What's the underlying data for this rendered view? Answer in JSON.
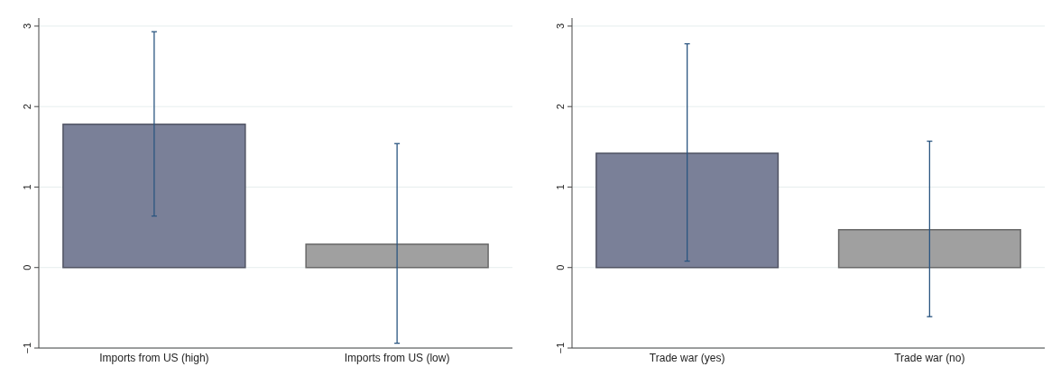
{
  "chart_data": [
    {
      "type": "bar",
      "categories": [
        "Imports from US (high)",
        "Imports from US (low)"
      ],
      "values": [
        1.78,
        0.29
      ],
      "colors": [
        "#7a8098",
        "#a0a0a0"
      ],
      "errors": [
        [
          0.64,
          2.93
        ],
        [
          -0.94,
          1.54
        ]
      ],
      "ylim": [
        -1,
        3.1
      ],
      "yticks": [
        {
          "value": -1,
          "label": "−1"
        },
        0,
        1,
        2,
        3
      ],
      "grid": "y"
    },
    {
      "type": "bar",
      "categories": [
        "Trade war (yes)",
        "Trade war (no)"
      ],
      "values": [
        1.42,
        0.47
      ],
      "colors": [
        "#7a8098",
        "#a0a0a0"
      ],
      "errors": [
        [
          0.08,
          2.78
        ],
        [
          -0.61,
          1.57
        ]
      ],
      "ylim": [
        -1,
        3.1
      ],
      "yticks": [
        {
          "value": -1,
          "label": "−1"
        },
        0,
        1,
        2,
        3
      ],
      "grid": "y"
    }
  ]
}
